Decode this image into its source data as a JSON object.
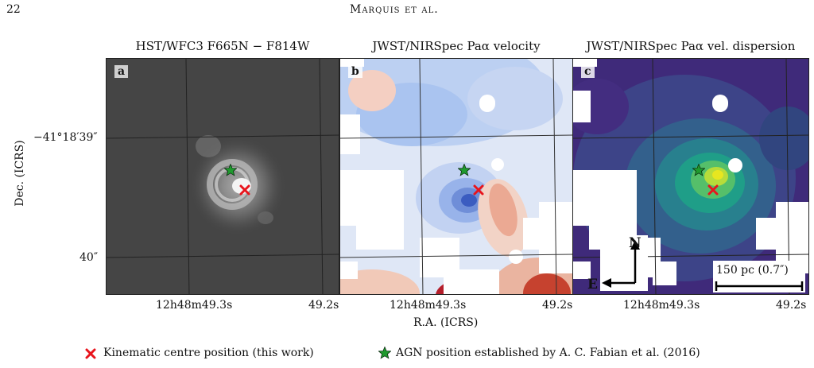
{
  "page": {
    "number": "22",
    "running_head": "Marquis et al."
  },
  "panels": [
    {
      "label": "a",
      "title": "HST/WFC3 F665N − F814W"
    },
    {
      "label": "b",
      "title": "JWST/NIRSpec Paα velocity"
    },
    {
      "label": "c",
      "title": "JWST/NIRSpec Paα vel. dispersion"
    }
  ],
  "axes": {
    "ylabel": "Dec. (ICRS)",
    "xlabel": "R.A. (ICRS)",
    "yticks": [
      "−41°18′39″",
      "40″"
    ],
    "xticks": [
      "12h48m49.3s",
      "49.2s"
    ]
  },
  "compass": {
    "north": "N",
    "east": "E"
  },
  "scalebar": {
    "label": "150 pc (0.7″)"
  },
  "legend": {
    "cross": "Kinematic centre position (this work)",
    "star": "AGN position established by A. C. Fabian et al. (2016)"
  },
  "colors": {
    "cross": "#e8141c",
    "star": "#1f9a2e"
  }
}
